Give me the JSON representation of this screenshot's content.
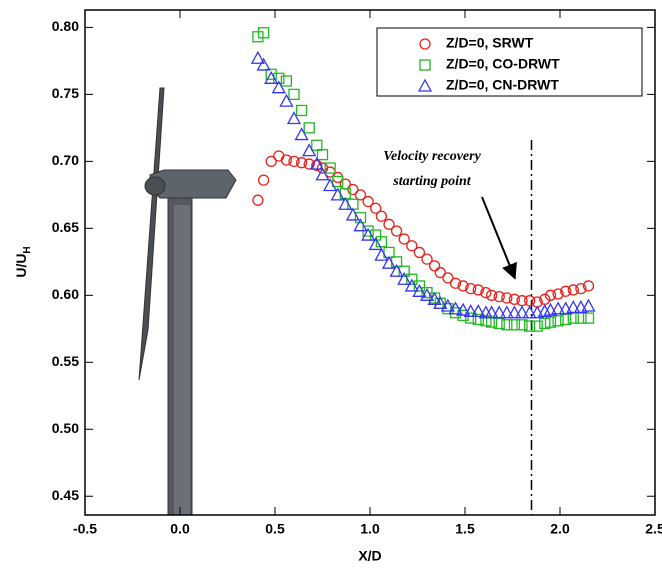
{
  "chart_data": {
    "type": "scatter",
    "xlabel": "X/D",
    "ylabel": "U/U",
    "ylabel_subscript": "H",
    "annotation": [
      "Velocity recovery",
      "starting point"
    ],
    "vline": 1.85,
    "xlim": [
      -0.5,
      2.5
    ],
    "ylim": [
      0.436,
      0.813
    ],
    "xticks": [
      -0.5,
      {
        "value": 0,
        "label": "0.0"
      },
      0.5,
      {
        "value": 1,
        "label": "1.0"
      },
      1.5,
      {
        "value": 2,
        "label": "2.0"
      },
      2.5
    ],
    "yticks": [
      0.45,
      {
        "value": 0.5,
        "label": "0.50"
      },
      0.55,
      {
        "value": 0.6,
        "label": "0.60"
      },
      0.65,
      {
        "value": 0.7,
        "label": "0.70"
      },
      0.75,
      {
        "value": 0.8,
        "label": "0.80"
      }
    ],
    "legend": "upper right",
    "x": [
      0.41,
      0.44,
      0.48,
      0.52,
      0.56,
      0.6,
      0.64,
      0.68,
      0.72,
      0.75,
      0.79,
      0.83,
      0.87,
      0.91,
      0.95,
      0.99,
      1.03,
      1.06,
      1.1,
      1.14,
      1.18,
      1.22,
      1.26,
      1.3,
      1.34,
      1.37,
      1.41,
      1.45,
      1.49,
      1.53,
      1.57,
      1.61,
      1.64,
      1.68,
      1.72,
      1.76,
      1.8,
      1.84,
      1.88,
      1.92,
      1.95,
      1.99,
      2.03,
      2.07,
      2.11,
      2.15
    ],
    "series": [
      {
        "name": "Z/D=0, SRWT",
        "color": "#e8211c",
        "marker": "circle",
        "values": [
          0.671,
          0.686,
          0.7,
          0.704,
          0.701,
          0.7,
          0.699,
          0.698,
          0.697,
          0.695,
          0.692,
          0.688,
          0.683,
          0.679,
          0.675,
          0.67,
          0.665,
          0.659,
          0.653,
          0.648,
          0.642,
          0.637,
          0.632,
          0.627,
          0.622,
          0.617,
          0.613,
          0.609,
          0.607,
          0.605,
          0.604,
          0.602,
          0.6,
          0.599,
          0.598,
          0.597,
          0.596,
          0.596,
          0.595,
          0.597,
          0.6,
          0.601,
          0.603,
          0.604,
          0.605,
          0.607
        ]
      },
      {
        "name": "Z/D=0, CO-DRWT",
        "color": "#22b822",
        "marker": "square",
        "values": [
          0.793,
          0.796,
          0.765,
          0.762,
          0.76,
          0.75,
          0.738,
          0.725,
          0.712,
          0.705,
          0.695,
          0.685,
          0.676,
          0.668,
          0.658,
          0.648,
          0.645,
          0.64,
          0.632,
          0.625,
          0.618,
          0.612,
          0.607,
          0.602,
          0.598,
          0.594,
          0.59,
          0.587,
          0.585,
          0.583,
          0.582,
          0.581,
          0.58,
          0.579,
          0.578,
          0.578,
          0.578,
          0.577,
          0.577,
          0.579,
          0.58,
          0.581,
          0.582,
          0.583,
          0.583,
          0.583
        ]
      },
      {
        "name": "Z/D=0, CN-DRWT",
        "color": "#3535f0",
        "marker": "triangle",
        "values": [
          0.777,
          0.772,
          0.762,
          0.755,
          0.745,
          0.732,
          0.72,
          0.708,
          0.698,
          0.69,
          0.682,
          0.675,
          0.668,
          0.66,
          0.652,
          0.645,
          0.638,
          0.63,
          0.624,
          0.618,
          0.612,
          0.607,
          0.603,
          0.6,
          0.597,
          0.594,
          0.592,
          0.59,
          0.589,
          0.588,
          0.588,
          0.587,
          0.587,
          0.587,
          0.587,
          0.587,
          0.587,
          0.587,
          0.587,
          0.588,
          0.589,
          0.59,
          0.59,
          0.591,
          0.591,
          0.592
        ]
      }
    ]
  }
}
